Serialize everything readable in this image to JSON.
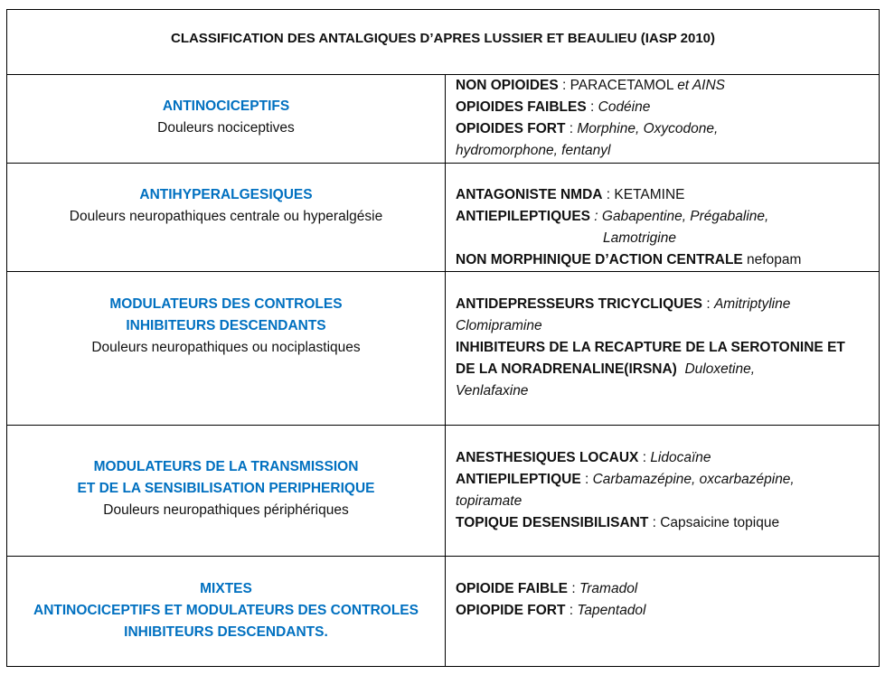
{
  "title": "CLASSIFICATION DES ANTALGIQUES D’APRES LUSSIER ET BEAULIEU  (IASP 2010)",
  "colors": {
    "category": "#0070c0",
    "text": "#111111",
    "border": "#000000"
  },
  "rows": [
    {
      "left": [
        {
          "text": "ANTINOCICEPTIFS",
          "style": "blue"
        },
        {
          "text": "Douleurs nociceptives",
          "style": "n"
        }
      ],
      "right": [
        [
          {
            "text": "NON OPIOIDES",
            "style": "b"
          },
          {
            "text": " : PARACETAMOL ",
            "style": "n"
          },
          {
            "text": "et AINS",
            "style": "i"
          }
        ],
        [
          {
            "text": "OPIOIDES FAIBLES",
            "style": "b"
          },
          {
            "text": " : ",
            "style": "n"
          },
          {
            "text": "Codéine",
            "style": "i"
          }
        ],
        [
          {
            "text": "OPIOIDES FORT",
            "style": "b"
          },
          {
            "text": " : ",
            "style": "n"
          },
          {
            "text": "Morphine, Oxycodone,",
            "style": "i"
          }
        ],
        [
          {
            "text": "hydromorphone, fentanyl",
            "style": "i"
          }
        ]
      ]
    },
    {
      "left": [
        {
          "text": "ANTIHYPERALGESIQUES",
          "style": "blue"
        },
        {
          "text": "Douleurs neuropathiques centrale ou hyperalgésie",
          "style": "n"
        }
      ],
      "right": [
        [
          {
            "text": "ANTAGONISTE NMDA",
            "style": "b"
          },
          {
            "text": " : KETAMINE",
            "style": "n"
          }
        ],
        [
          {
            "text": "ANTIEPILEPTIQUES",
            "style": "b"
          },
          {
            "text": " : Gabapentine, Prégabaline,",
            "style": "i"
          }
        ],
        [
          {
            "text": "Lamotrigine",
            "style": "i",
            "indent": true
          }
        ],
        [
          {
            "text": "NON MORPHINIQUE D’ACTION CENTRALE",
            "style": "b"
          },
          {
            "text": " nefopam",
            "style": "n"
          }
        ]
      ]
    },
    {
      "left": [
        {
          "text": "MODULATEURS DES CONTROLES",
          "style": "blue"
        },
        {
          "text": "INHIBITEURS DESCENDANTS",
          "style": "blue"
        },
        {
          "text": "Douleurs neuropathiques ou nociplastiques",
          "style": "n"
        }
      ],
      "right": [
        [
          {
            "text": "ANTIDEPRESSEURS TRICYCLIQUES",
            "style": "b"
          },
          {
            "text": " : ",
            "style": "n"
          },
          {
            "text": "Amitriptyline",
            "style": "i"
          }
        ],
        [
          {
            "text": "Clomipramine",
            "style": "i"
          }
        ],
        [
          {
            "text": "INHIBITEURS DE LA RECAPTURE DE LA SEROTONINE ET",
            "style": "b"
          }
        ],
        [
          {
            "text": "DE LA NORADRENALINE(IRSNA)",
            "style": "b"
          },
          {
            "text": "  Duloxetine,",
            "style": "i"
          }
        ],
        [
          {
            "text": "Venlafaxine",
            "style": "i"
          }
        ]
      ]
    },
    {
      "left": [
        {
          "text": "MODULATEURS DE LA TRANSMISSION",
          "style": "blue"
        },
        {
          "text": "ET DE LA SENSIBILISATION PERIPHERIQUE",
          "style": "blue"
        },
        {
          "text": "Douleurs neuropathiques périphériques",
          "style": "n"
        }
      ],
      "right": [
        [
          {
            "text": "ANESTHESIQUES LOCAUX",
            "style": "b"
          },
          {
            "text": " : ",
            "style": "n"
          },
          {
            "text": "Lidocaïne",
            "style": "i"
          }
        ],
        [
          {
            "text": "ANTIEPILEPTIQUE",
            "style": "b"
          },
          {
            "text": " : ",
            "style": "n"
          },
          {
            "text": "Carbamazépine, oxcarbazépine,",
            "style": "i"
          }
        ],
        [
          {
            "text": "topiramate",
            "style": "i"
          }
        ],
        [
          {
            "text": "TOPIQUE DESENSIBILISANT",
            "style": "b"
          },
          {
            "text": " : Capsaicine topique",
            "style": "n"
          }
        ]
      ]
    },
    {
      "left": [
        {
          "text": "MIXTES",
          "style": "blue"
        },
        {
          "text": "ANTINOCICEPTIFS ET MODULATEURS DES CONTROLES",
          "style": "blue"
        },
        {
          "text": "INHIBITEURS DESCENDANTS.",
          "style": "blue"
        }
      ],
      "right": [
        [
          {
            "text": "OPIOIDE FAIBLE",
            "style": "b"
          },
          {
            "text": " : ",
            "style": "n"
          },
          {
            "text": "Tramadol",
            "style": "i"
          }
        ],
        [
          {
            "text": "OPIOPIDE FORT",
            "style": "b"
          },
          {
            "text": " : ",
            "style": "n"
          },
          {
            "text": "Tapentadol",
            "style": "i"
          }
        ]
      ]
    }
  ]
}
